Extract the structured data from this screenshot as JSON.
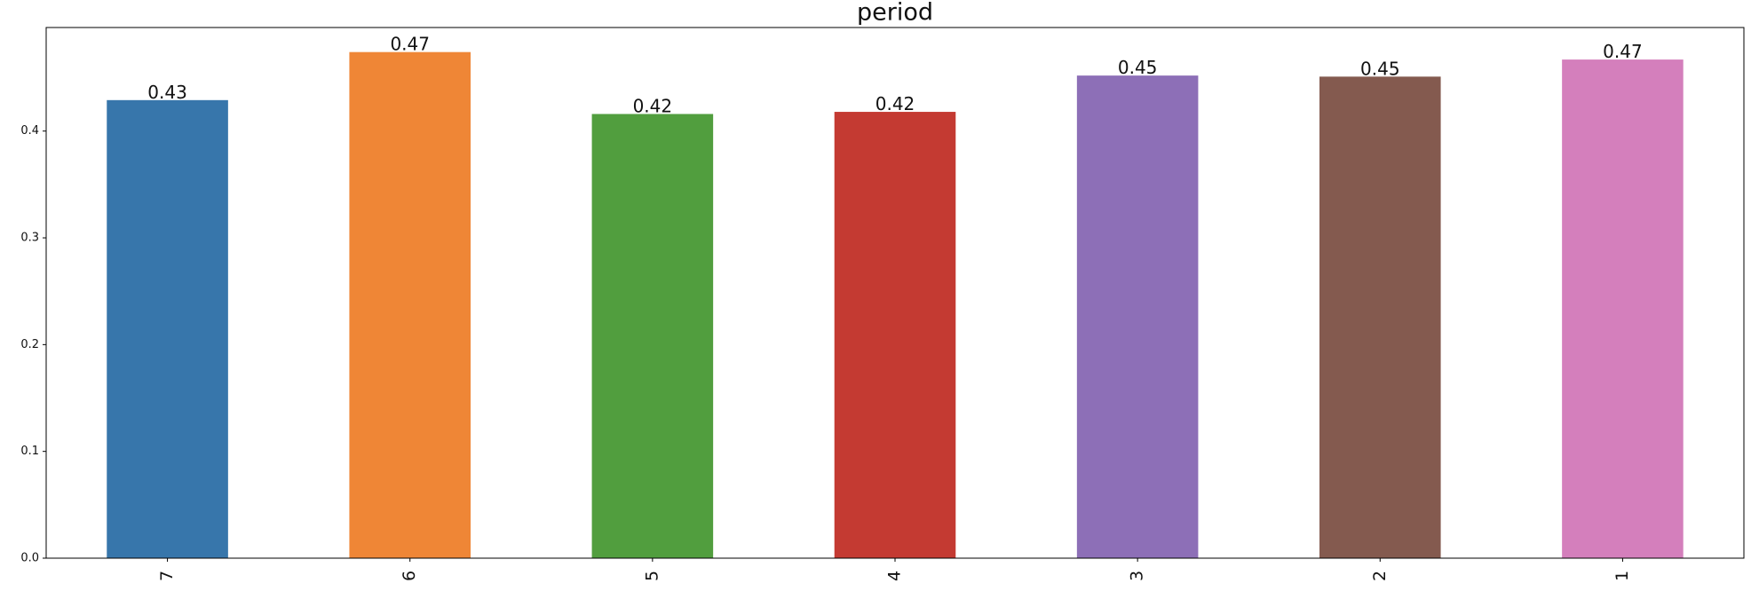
{
  "chart_data": {
    "type": "bar",
    "title": "period",
    "categories": [
      "7",
      "6",
      "5",
      "4",
      "3",
      "2",
      "1"
    ],
    "values": [
      0.429,
      0.474,
      0.416,
      0.418,
      0.452,
      0.451,
      0.467
    ],
    "value_labels": [
      "0.43",
      "0.47",
      "0.42",
      "0.42",
      "0.45",
      "0.45",
      "0.47"
    ],
    "colors": [
      "#3776ab",
      "#ef8636",
      "#519e3e",
      "#c43a32",
      "#8d6fb7",
      "#845a4f",
      "#d47fbc"
    ],
    "ylim": [
      0,
      0.497
    ],
    "yticks": [
      {
        "value": 0,
        "label": "0.0"
      },
      0.1,
      0.2,
      0.3,
      0.4
    ],
    "grid": false
  }
}
